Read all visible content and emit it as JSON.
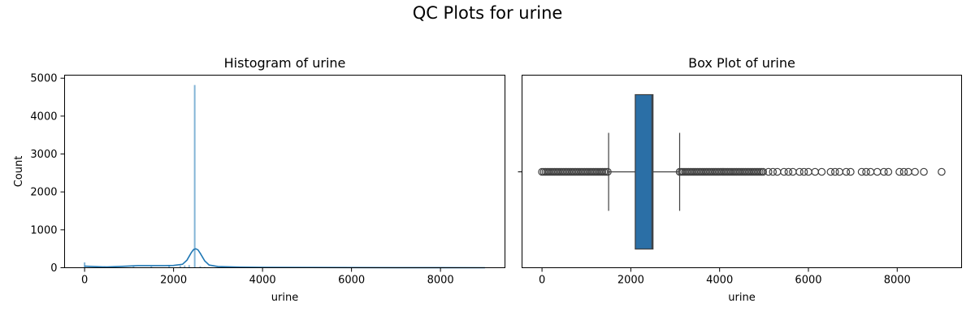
{
  "figure": {
    "suptitle": "QC Plots for urine"
  },
  "chart_data": [
    {
      "type": "histogram",
      "title": "Histogram of urine",
      "xlabel": "urine",
      "ylabel": "Count",
      "xlim": [
        -450,
        9450
      ],
      "ylim": [
        0,
        5080
      ],
      "xticks": [
        0,
        2000,
        4000,
        6000,
        8000
      ],
      "yticks": [
        0,
        1000,
        2000,
        3000,
        4000,
        5000
      ],
      "color": "#1f77b4",
      "bins": [
        {
          "x": 0,
          "count": 140
        },
        {
          "x": 2475,
          "count": 4820
        }
      ],
      "small_bins_x": [
        300,
        700,
        1100,
        1500,
        1900,
        2150,
        2250,
        2350,
        2600,
        2700
      ],
      "small_bins_count": [
        20,
        25,
        30,
        35,
        45,
        55,
        60,
        70,
        40,
        20
      ],
      "kde": {
        "x": [
          0,
          200,
          500,
          800,
          1000,
          1200,
          1500,
          1800,
          2000,
          2200,
          2300,
          2400,
          2450,
          2500,
          2550,
          2600,
          2700,
          2800,
          3000,
          3500,
          4000,
          5000,
          6000,
          7000,
          8000,
          9000
        ],
        "y": [
          40,
          30,
          20,
          35,
          45,
          55,
          55,
          55,
          60,
          90,
          200,
          400,
          480,
          500,
          470,
          380,
          180,
          70,
          30,
          15,
          10,
          6,
          4,
          3,
          2,
          1
        ]
      }
    },
    {
      "type": "box",
      "title": "Box Plot of urine",
      "xlabel": "urine",
      "xlim": [
        -450,
        9450
      ],
      "xticks": [
        0,
        2000,
        4000,
        6000,
        8000
      ],
      "color": "#2b6fa6",
      "q1": 2100,
      "median": 2475,
      "q3": 2500,
      "whisker_low": 1500,
      "whisker_high": 3100,
      "outliers_low_range": [
        0,
        1500
      ],
      "outliers_high_dense_range": [
        3100,
        5000
      ],
      "outliers_high": [
        5100,
        5200,
        5300,
        5450,
        5550,
        5650,
        5800,
        5900,
        6000,
        6150,
        6300,
        6500,
        6600,
        6700,
        6850,
        6950,
        7200,
        7300,
        7400,
        7550,
        7700,
        7800,
        8050,
        8150,
        8250,
        8400,
        8600,
        9000
      ]
    }
  ]
}
